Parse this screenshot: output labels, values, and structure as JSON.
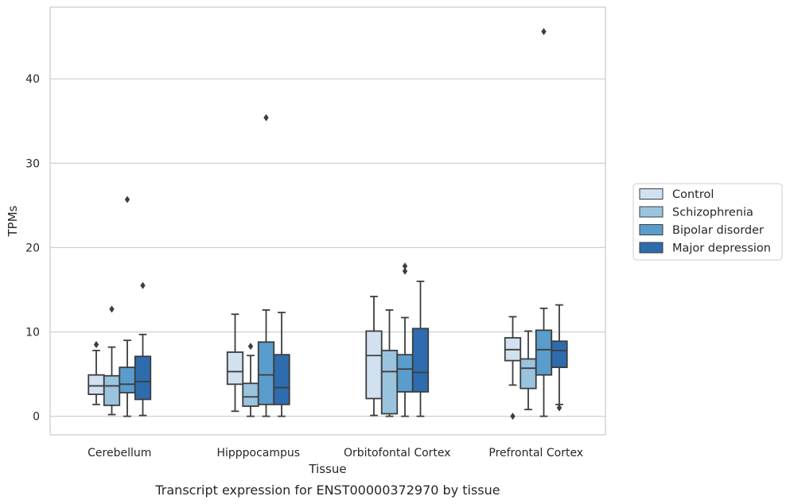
{
  "chart_data": {
    "type": "box",
    "title": "",
    "caption": "Transcript expression for ENST00000372970 by tissue",
    "xlabel": "Tissue",
    "ylabel": "TPMs",
    "ylim": [
      -2.2,
      48.5
    ],
    "yticks": [
      0,
      10,
      20,
      30,
      40
    ],
    "ytick_labels": [
      "0",
      "10",
      "20",
      "30",
      "40"
    ],
    "grid": "horizontal",
    "legend_position": "right",
    "categories": [
      "Cerebellum",
      "Hipppocampus",
      "Orbitofontal Cortex",
      "Prefrontal Cortex"
    ],
    "series": [
      {
        "name": "Control",
        "color": "#d1e1ef",
        "boxes": [
          {
            "whislo": 1.4,
            "q1": 2.6,
            "med": 3.6,
            "q3": 4.9,
            "whishi": 7.8,
            "fliers": [
              8.5
            ]
          },
          {
            "whislo": 0.6,
            "q1": 3.8,
            "med": 5.3,
            "q3": 7.6,
            "whishi": 12.1,
            "fliers": []
          },
          {
            "whislo": 0.1,
            "q1": 2.1,
            "med": 7.2,
            "q3": 10.1,
            "whishi": 14.2,
            "fliers": []
          },
          {
            "whislo": 3.7,
            "q1": 6.6,
            "med": 7.9,
            "q3": 9.3,
            "whishi": 11.8,
            "fliers": [
              0.0
            ]
          }
        ]
      },
      {
        "name": "Schizophrenia",
        "color": "#9ac3de",
        "boxes": [
          {
            "whislo": 0.2,
            "q1": 1.3,
            "med": 3.6,
            "q3": 4.8,
            "whishi": 8.2,
            "fliers": [
              12.7
            ]
          },
          {
            "whislo": 0.0,
            "q1": 1.2,
            "med": 2.3,
            "q3": 3.9,
            "whishi": 7.2,
            "fliers": [
              8.3
            ]
          },
          {
            "whislo": 0.0,
            "q1": 0.3,
            "med": 5.3,
            "q3": 7.8,
            "whishi": 12.6,
            "fliers": []
          },
          {
            "whislo": 0.8,
            "q1": 3.3,
            "med": 5.7,
            "q3": 6.8,
            "whishi": 10.1,
            "fliers": []
          }
        ]
      },
      {
        "name": "Bipolar disorder",
        "color": "#5a9ccc",
        "boxes": [
          {
            "whislo": 0.0,
            "q1": 2.8,
            "med": 3.8,
            "q3": 5.8,
            "whishi": 9.0,
            "fliers": [
              25.7
            ]
          },
          {
            "whislo": 0.0,
            "q1": 1.4,
            "med": 4.9,
            "q3": 8.8,
            "whishi": 12.6,
            "fliers": [
              35.4
            ]
          },
          {
            "whislo": 0.0,
            "q1": 2.9,
            "med": 5.6,
            "q3": 7.3,
            "whishi": 11.7,
            "fliers": [
              17.2,
              17.8
            ]
          },
          {
            "whislo": 0.0,
            "q1": 4.9,
            "med": 7.9,
            "q3": 10.2,
            "whishi": 12.8,
            "fliers": [
              45.6
            ]
          }
        ]
      },
      {
        "name": "Major depression",
        "color": "#2d6cad",
        "boxes": [
          {
            "whislo": 0.1,
            "q1": 2.0,
            "med": 4.1,
            "q3": 7.1,
            "whishi": 9.7,
            "fliers": [
              15.5
            ]
          },
          {
            "whislo": 0.0,
            "q1": 1.4,
            "med": 3.4,
            "q3": 7.3,
            "whishi": 12.3,
            "fliers": []
          },
          {
            "whislo": 0.0,
            "q1": 2.9,
            "med": 5.2,
            "q3": 10.4,
            "whishi": 16.0,
            "fliers": []
          },
          {
            "whislo": 1.4,
            "q1": 5.8,
            "med": 7.8,
            "q3": 8.9,
            "whishi": 13.2,
            "fliers": [
              1.0
            ]
          }
        ]
      }
    ]
  }
}
